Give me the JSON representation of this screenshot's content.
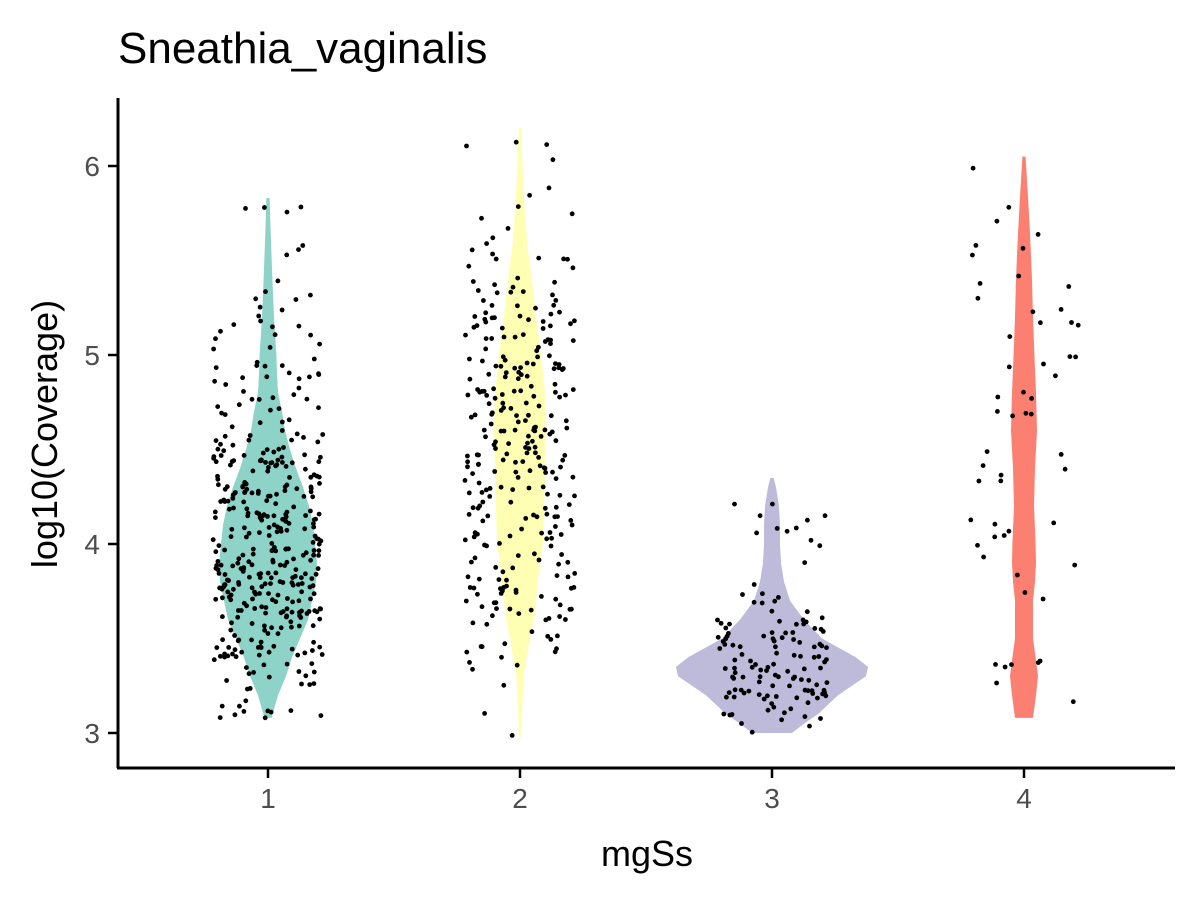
{
  "chart_data": {
    "type": "violin",
    "title": "Sneathia_vaginalis",
    "xlabel": "mgSs",
    "ylabel": "log10(Coverage)",
    "categories": [
      "1",
      "2",
      "3",
      "4"
    ],
    "y_ticks": [
      "3",
      "4",
      "5",
      "6"
    ],
    "ylim": [
      2.82,
      6.35
    ],
    "grid": false,
    "legend": "none",
    "jitter_points": true,
    "groups": [
      {
        "category": "1",
        "color": "#8DD3C7",
        "min": 3.08,
        "max": 5.83,
        "n_points": 400,
        "density": [
          [
            3.08,
            0.018
          ],
          [
            3.2,
            0.05
          ],
          [
            3.3,
            0.09
          ],
          [
            3.4,
            0.12
          ],
          [
            3.5,
            0.16
          ],
          [
            3.6,
            0.2
          ],
          [
            3.7,
            0.22
          ],
          [
            3.8,
            0.24
          ],
          [
            3.9,
            0.245
          ],
          [
            4.0,
            0.235
          ],
          [
            4.1,
            0.225
          ],
          [
            4.2,
            0.205
          ],
          [
            4.3,
            0.175
          ],
          [
            4.4,
            0.14
          ],
          [
            4.5,
            0.11
          ],
          [
            4.6,
            0.085
          ],
          [
            4.7,
            0.07
          ],
          [
            4.8,
            0.05
          ],
          [
            4.9,
            0.045
          ],
          [
            5.0,
            0.042
          ],
          [
            5.2,
            0.03
          ],
          [
            5.4,
            0.022
          ],
          [
            5.6,
            0.015
          ],
          [
            5.83,
            0.008
          ]
        ]
      },
      {
        "category": "2",
        "color": "#FFFFB3",
        "min": 2.97,
        "max": 6.2,
        "n_points": 300,
        "density": [
          [
            2.97,
            0.004
          ],
          [
            3.1,
            0.01
          ],
          [
            3.3,
            0.018
          ],
          [
            3.5,
            0.05
          ],
          [
            3.6,
            0.07
          ],
          [
            3.8,
            0.09
          ],
          [
            3.9,
            0.1
          ],
          [
            4.0,
            0.115
          ],
          [
            4.2,
            0.12
          ],
          [
            4.4,
            0.125
          ],
          [
            4.6,
            0.13
          ],
          [
            4.8,
            0.125
          ],
          [
            5.0,
            0.105
          ],
          [
            5.2,
            0.08
          ],
          [
            5.4,
            0.06
          ],
          [
            5.6,
            0.035
          ],
          [
            5.8,
            0.022
          ],
          [
            6.0,
            0.013
          ],
          [
            6.2,
            0.006
          ]
        ]
      },
      {
        "category": "3",
        "color": "#BEBADA",
        "min": 3.0,
        "max": 4.35,
        "n_points": 130,
        "density": [
          [
            3.0,
            0.1
          ],
          [
            3.05,
            0.16
          ],
          [
            3.1,
            0.23
          ],
          [
            3.2,
            0.33
          ],
          [
            3.3,
            0.47
          ],
          [
            3.35,
            0.48
          ],
          [
            3.4,
            0.42
          ],
          [
            3.5,
            0.25
          ],
          [
            3.6,
            0.16
          ],
          [
            3.7,
            0.09
          ],
          [
            3.8,
            0.06
          ],
          [
            3.9,
            0.045
          ],
          [
            4.0,
            0.04
          ],
          [
            4.1,
            0.04
          ],
          [
            4.2,
            0.035
          ],
          [
            4.3,
            0.02
          ],
          [
            4.35,
            0.008
          ]
        ]
      },
      {
        "category": "4",
        "color": "#FB8072",
        "min": 3.08,
        "max": 6.05,
        "n_points": 55,
        "density": [
          [
            3.08,
            0.045
          ],
          [
            3.2,
            0.06
          ],
          [
            3.3,
            0.07
          ],
          [
            3.4,
            0.058
          ],
          [
            3.5,
            0.045
          ],
          [
            3.7,
            0.045
          ],
          [
            3.8,
            0.055
          ],
          [
            3.9,
            0.06
          ],
          [
            4.0,
            0.058
          ],
          [
            4.2,
            0.05
          ],
          [
            4.4,
            0.055
          ],
          [
            4.6,
            0.065
          ],
          [
            4.8,
            0.06
          ],
          [
            5.0,
            0.052
          ],
          [
            5.2,
            0.045
          ],
          [
            5.4,
            0.04
          ],
          [
            5.6,
            0.032
          ],
          [
            5.8,
            0.022
          ],
          [
            6.05,
            0.008
          ]
        ]
      }
    ]
  }
}
